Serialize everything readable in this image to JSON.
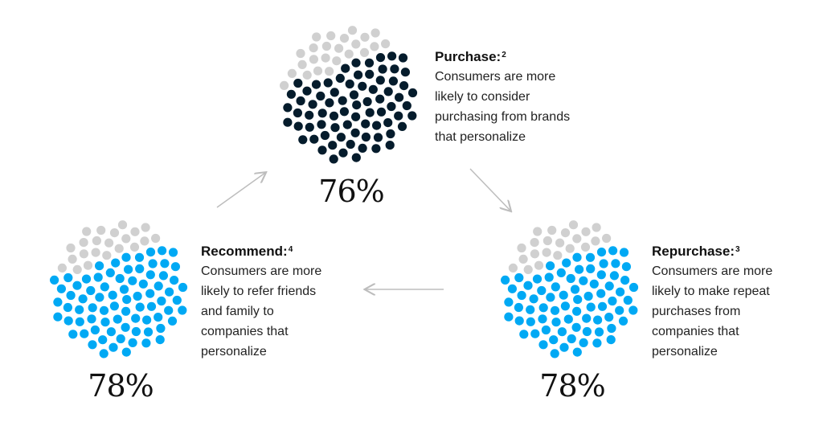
{
  "colors": {
    "purchase": "#051c2c",
    "repurchase": "#00a9f4",
    "recommend": "#00a9f4",
    "remainder": "#d0d0d0",
    "arrow": "#bdbdbd"
  },
  "stages": {
    "purchase": {
      "title": "Purchase:",
      "note": "2",
      "percent_label": "76%",
      "percent": 76,
      "lines": [
        "Consumers are more",
        "likely to consider",
        "purchasing from brands",
        "that personalize"
      ]
    },
    "repurchase": {
      "title": "Repurchase:",
      "note": "3",
      "percent_label": "78%",
      "percent": 78,
      "lines": [
        "Consumers are more",
        "likely to make repeat",
        "purchases from",
        "companies that",
        "personalize"
      ]
    },
    "recommend": {
      "title": "Recommend:",
      "note": "4",
      "percent_label": "78%",
      "percent": 78,
      "lines": [
        "Consumers are more",
        "likely to refer friends",
        "and family to",
        "companies that",
        "personalize"
      ]
    }
  },
  "chart_data": {
    "type": "dot-matrix",
    "categories": [
      "Purchase",
      "Repurchase",
      "Recommend"
    ],
    "values": [
      76,
      78,
      78
    ],
    "unit": "%",
    "dots_per_chart": 100
  }
}
